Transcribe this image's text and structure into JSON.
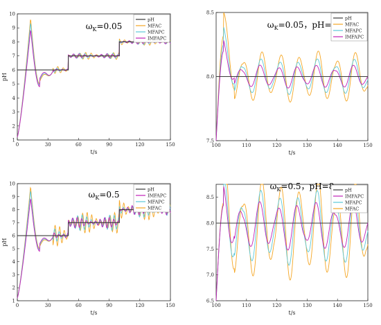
{
  "colors": {
    "pH": "#3a3a3a",
    "MFAC": "#f5a623",
    "MFAPC": "#5bc8d8",
    "IMFAPC": "#c020b8"
  },
  "chart_data": [
    {
      "type": "line",
      "title_main": "ω",
      "title_sub": "K",
      "title_rest": "=0.05",
      "xlabel": "t/s",
      "ylabel": "pH",
      "xlim": [
        0,
        150
      ],
      "ylim": [
        1,
        10
      ],
      "xticks": [
        "0",
        "30",
        "60",
        "90",
        "120",
        "150"
      ],
      "yticks": [
        "1",
        "2",
        "3",
        "4",
        "5",
        "6",
        "7",
        "8",
        "9",
        "10"
      ],
      "legend": [
        "pH",
        "MFAC",
        "MFAPC",
        "IMFAPC"
      ],
      "legend_placement": "top-right",
      "setpoint": [
        [
          0,
          6
        ],
        [
          50,
          6
        ],
        [
          50,
          7
        ],
        [
          100,
          7
        ],
        [
          100,
          8
        ],
        [
          150,
          8
        ]
      ],
      "mode": "full",
      "amp": [
        0.25,
        0.2,
        0.15
      ],
      "peak": {
        "MFAC": 9.7,
        "MFAPC": 9.4,
        "IMFAPC": 8.9
      }
    },
    {
      "type": "line",
      "title_main": "ω",
      "title_sub": "K",
      "title_rest": "=0.05，pH=8",
      "xlabel": "t/s",
      "ylabel": "",
      "xlim": [
        100,
        150
      ],
      "ylim": [
        7.5,
        8.5
      ],
      "xticks": [
        "100",
        "110",
        "120",
        "130",
        "140",
        "150"
      ],
      "yticks": [
        "7.5",
        "8.0",
        "8.5"
      ],
      "legend": [
        "pH",
        "MFAC",
        "MFAPC",
        "IMFAPC"
      ],
      "legend_placement": "top-right",
      "setpoint": [
        [
          100,
          8
        ],
        [
          150,
          8
        ]
      ],
      "mode": "zoom",
      "amp": [
        0.2,
        0.14,
        0.09
      ],
      "peak": {
        "MFAC": 8.32,
        "MFAPC": 8.25,
        "IMFAPC": 8.2
      }
    },
    {
      "type": "line",
      "title_main": "ω",
      "title_sub": "K",
      "title_rest": "=0.5",
      "xlabel": "t/s",
      "ylabel": "pH",
      "xlim": [
        0,
        150
      ],
      "ylim": [
        1,
        10
      ],
      "xticks": [
        "0",
        "30",
        "60",
        "90",
        "120",
        "150"
      ],
      "yticks": [
        "1",
        "2",
        "3",
        "4",
        "5",
        "6",
        "7",
        "8",
        "9",
        "10"
      ],
      "legend": [
        "pH",
        "IMFAPC",
        "MFAPC",
        "MFAC"
      ],
      "legend_placement": "top-right",
      "setpoint": [
        [
          0,
          6
        ],
        [
          50,
          6
        ],
        [
          50,
          7
        ],
        [
          100,
          7
        ],
        [
          100,
          8
        ],
        [
          150,
          8
        ]
      ],
      "mode": "full",
      "amp": [
        0.8,
        0.6,
        0.4
      ],
      "peak": {
        "MFAC": 9.8,
        "MFAPC": 9.5,
        "IMFAPC": 8.9
      }
    },
    {
      "type": "line",
      "title_main": "ω",
      "title_sub": "K",
      "title_rest": "=0.5，pH=8",
      "xlabel": "t/s",
      "ylabel": "",
      "xlim": [
        100,
        150
      ],
      "ylim": [
        6.5,
        8.75
      ],
      "xticks": [
        "100",
        "110",
        "120",
        "130",
        "140",
        "150"
      ],
      "yticks": [
        "6.5",
        "7.0",
        "7.5",
        "8.0",
        "8.5"
      ],
      "legend": [
        "pH",
        "IMFAPC",
        "MFAPC",
        "MFAC"
      ],
      "legend_placement": "top-right",
      "setpoint": [
        [
          100,
          8
        ],
        [
          150,
          8
        ]
      ],
      "mode": "zoom",
      "amp": [
        1.1,
        0.8,
        0.5
      ],
      "peak": {
        "MFAC": 8.4,
        "MFAPC": 8.35,
        "IMFAPC": 8.35
      }
    }
  ]
}
